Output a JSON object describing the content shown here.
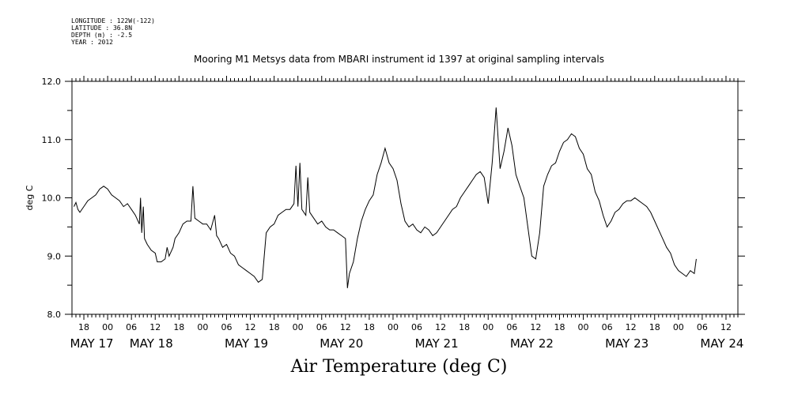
{
  "meta": {
    "longitude": "LONGITUDE : 122W(-122)",
    "latitude": "LATITUDE : 36.8N",
    "depth": "DEPTH (m) : -2.5",
    "year": "YEAR : 2012"
  },
  "chart_data": {
    "type": "line",
    "title": "Mooring M1 Metsys data from MBARI instrument id 1397 at original sampling intervals",
    "xlabel": "Air Temperature (deg C)",
    "ylabel": "deg C",
    "ylim": [
      8.0,
      12.0
    ],
    "y_ticks": [
      "8.0",
      "9.0",
      "10.0",
      "11.0",
      "12.0"
    ],
    "x_range_hours": [
      -9,
      159
    ],
    "x_hour_ticks": [
      {
        "h": -6,
        "label": "18"
      },
      {
        "h": 0,
        "label": "00"
      },
      {
        "h": 6,
        "label": "06"
      },
      {
        "h": 12,
        "label": "12"
      },
      {
        "h": 18,
        "label": "18"
      },
      {
        "h": 24,
        "label": "00"
      },
      {
        "h": 30,
        "label": "06"
      },
      {
        "h": 36,
        "label": "12"
      },
      {
        "h": 42,
        "label": "18"
      },
      {
        "h": 48,
        "label": "00"
      },
      {
        "h": 54,
        "label": "06"
      },
      {
        "h": 60,
        "label": "12"
      },
      {
        "h": 66,
        "label": "18"
      },
      {
        "h": 72,
        "label": "00"
      },
      {
        "h": 78,
        "label": "06"
      },
      {
        "h": 84,
        "label": "12"
      },
      {
        "h": 90,
        "label": "18"
      },
      {
        "h": 96,
        "label": "00"
      },
      {
        "h": 102,
        "label": "06"
      },
      {
        "h": 108,
        "label": "12"
      },
      {
        "h": 114,
        "label": "18"
      },
      {
        "h": 120,
        "label": "00"
      },
      {
        "h": 126,
        "label": "06"
      },
      {
        "h": 132,
        "label": "12"
      },
      {
        "h": 138,
        "label": "18"
      },
      {
        "h": 144,
        "label": "00"
      },
      {
        "h": 150,
        "label": "06"
      },
      {
        "h": 156,
        "label": "12"
      }
    ],
    "x_date_labels": [
      {
        "h": -4,
        "label": "MAY 17"
      },
      {
        "h": 11,
        "label": "MAY 18"
      },
      {
        "h": 35,
        "label": "MAY 19"
      },
      {
        "h": 59,
        "label": "MAY 20"
      },
      {
        "h": 83,
        "label": "MAY 21"
      },
      {
        "h": 107,
        "label": "MAY 22"
      },
      {
        "h": 131,
        "label": "MAY 23"
      },
      {
        "h": 155,
        "label": "MAY 24"
      }
    ],
    "series": [
      {
        "points": [
          [
            -8.5,
            9.85
          ],
          [
            -8,
            9.92
          ],
          [
            -7.5,
            9.8
          ],
          [
            -7,
            9.75
          ],
          [
            -6,
            9.85
          ],
          [
            -5,
            9.95
          ],
          [
            -4,
            10.0
          ],
          [
            -3,
            10.05
          ],
          [
            -2,
            10.15
          ],
          [
            -1,
            10.2
          ],
          [
            0,
            10.15
          ],
          [
            1,
            10.05
          ],
          [
            2,
            10.0
          ],
          [
            3,
            9.95
          ],
          [
            4,
            9.85
          ],
          [
            5,
            9.9
          ],
          [
            6,
            9.8
          ],
          [
            7,
            9.7
          ],
          [
            8,
            9.55
          ],
          [
            8.3,
            10.0
          ],
          [
            8.6,
            9.4
          ],
          [
            9,
            9.85
          ],
          [
            9.3,
            9.3
          ],
          [
            10,
            9.2
          ],
          [
            11,
            9.1
          ],
          [
            12,
            9.05
          ],
          [
            12.5,
            8.9
          ],
          [
            13.5,
            8.9
          ],
          [
            14.5,
            8.95
          ],
          [
            15,
            9.15
          ],
          [
            15.5,
            9.0
          ],
          [
            16.5,
            9.15
          ],
          [
            17,
            9.3
          ],
          [
            18,
            9.4
          ],
          [
            19,
            9.55
          ],
          [
            20,
            9.6
          ],
          [
            21,
            9.6
          ],
          [
            21.5,
            10.2
          ],
          [
            22,
            9.65
          ],
          [
            23,
            9.6
          ],
          [
            24,
            9.55
          ],
          [
            25,
            9.55
          ],
          [
            26,
            9.45
          ],
          [
            27,
            9.7
          ],
          [
            27.5,
            9.35
          ],
          [
            28,
            9.3
          ],
          [
            29,
            9.15
          ],
          [
            30,
            9.2
          ],
          [
            31,
            9.05
          ],
          [
            32,
            9.0
          ],
          [
            33,
            8.85
          ],
          [
            34,
            8.8
          ],
          [
            35,
            8.75
          ],
          [
            36,
            8.7
          ],
          [
            37,
            8.65
          ],
          [
            38,
            8.55
          ],
          [
            39,
            8.6
          ],
          [
            40,
            9.4
          ],
          [
            41,
            9.5
          ],
          [
            42,
            9.55
          ],
          [
            43,
            9.7
          ],
          [
            44,
            9.75
          ],
          [
            45,
            9.8
          ],
          [
            46,
            9.8
          ],
          [
            47,
            9.9
          ],
          [
            47.5,
            10.55
          ],
          [
            48,
            9.85
          ],
          [
            48.5,
            10.6
          ],
          [
            49,
            9.8
          ],
          [
            50,
            9.7
          ],
          [
            50.5,
            10.35
          ],
          [
            51,
            9.75
          ],
          [
            52,
            9.65
          ],
          [
            53,
            9.55
          ],
          [
            54,
            9.6
          ],
          [
            55,
            9.5
          ],
          [
            56,
            9.45
          ],
          [
            57,
            9.45
          ],
          [
            58,
            9.4
          ],
          [
            59,
            9.35
          ],
          [
            60,
            9.3
          ],
          [
            60.5,
            8.45
          ],
          [
            61,
            8.7
          ],
          [
            62,
            8.9
          ],
          [
            63,
            9.3
          ],
          [
            64,
            9.6
          ],
          [
            65,
            9.8
          ],
          [
            66,
            9.95
          ],
          [
            67,
            10.05
          ],
          [
            68,
            10.4
          ],
          [
            69,
            10.6
          ],
          [
            70,
            10.85
          ],
          [
            71,
            10.6
          ],
          [
            72,
            10.5
          ],
          [
            73,
            10.3
          ],
          [
            74,
            9.9
          ],
          [
            75,
            9.6
          ],
          [
            76,
            9.5
          ],
          [
            77,
            9.55
          ],
          [
            78,
            9.45
          ],
          [
            79,
            9.4
          ],
          [
            80,
            9.5
          ],
          [
            81,
            9.45
          ],
          [
            82,
            9.35
          ],
          [
            83,
            9.4
          ],
          [
            84,
            9.5
          ],
          [
            85,
            9.6
          ],
          [
            86,
            9.7
          ],
          [
            87,
            9.8
          ],
          [
            88,
            9.85
          ],
          [
            89,
            10.0
          ],
          [
            90,
            10.1
          ],
          [
            91,
            10.2
          ],
          [
            92,
            10.3
          ],
          [
            93,
            10.4
          ],
          [
            94,
            10.45
          ],
          [
            95,
            10.35
          ],
          [
            96,
            9.9
          ],
          [
            97,
            10.6
          ],
          [
            98,
            11.55
          ],
          [
            99,
            10.5
          ],
          [
            100,
            10.8
          ],
          [
            101,
            11.2
          ],
          [
            102,
            10.9
          ],
          [
            103,
            10.4
          ],
          [
            104,
            10.2
          ],
          [
            105,
            10.0
          ],
          [
            106,
            9.5
          ],
          [
            107,
            9.0
          ],
          [
            108,
            8.95
          ],
          [
            109,
            9.4
          ],
          [
            110,
            10.2
          ],
          [
            111,
            10.4
          ],
          [
            112,
            10.55
          ],
          [
            113,
            10.6
          ],
          [
            114,
            10.8
          ],
          [
            115,
            10.95
          ],
          [
            116,
            11.0
          ],
          [
            117,
            11.1
          ],
          [
            118,
            11.05
          ],
          [
            119,
            10.85
          ],
          [
            120,
            10.75
          ],
          [
            121,
            10.5
          ],
          [
            122,
            10.4
          ],
          [
            123,
            10.1
          ],
          [
            124,
            9.95
          ],
          [
            125,
            9.7
          ],
          [
            126,
            9.5
          ],
          [
            127,
            9.6
          ],
          [
            128,
            9.75
          ],
          [
            129,
            9.8
          ],
          [
            130,
            9.9
          ],
          [
            131,
            9.95
          ],
          [
            132,
            9.95
          ],
          [
            133,
            10.0
          ],
          [
            134,
            9.95
          ],
          [
            135,
            9.9
          ],
          [
            136,
            9.85
          ],
          [
            137,
            9.75
          ],
          [
            138,
            9.6
          ],
          [
            139,
            9.45
          ],
          [
            140,
            9.3
          ],
          [
            141,
            9.15
          ],
          [
            142,
            9.05
          ],
          [
            143,
            8.85
          ],
          [
            144,
            8.75
          ],
          [
            145,
            8.7
          ],
          [
            146,
            8.65
          ],
          [
            147,
            8.75
          ],
          [
            148,
            8.7
          ],
          [
            148.5,
            8.95
          ]
        ]
      }
    ]
  }
}
